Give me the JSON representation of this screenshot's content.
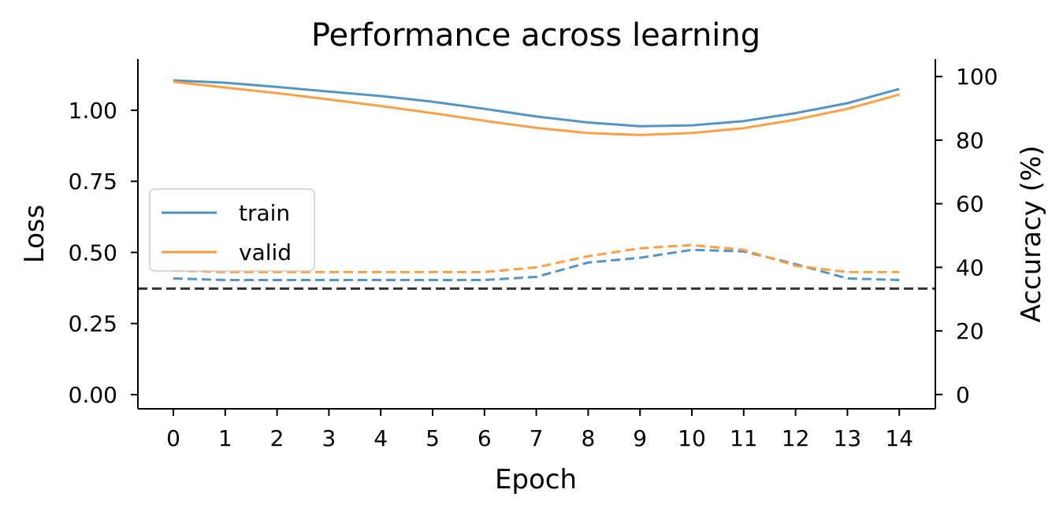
{
  "chart_data": {
    "type": "line",
    "title": "Performance across learning",
    "xlabel": "Epoch",
    "ylabel_left": "Loss",
    "ylabel_right": "Accuracy (%)",
    "x": [
      0,
      1,
      2,
      3,
      4,
      5,
      6,
      7,
      8,
      9,
      10,
      11,
      12,
      13,
      14
    ],
    "x_ticks": [
      "0",
      "1",
      "2",
      "3",
      "4",
      "5",
      "6",
      "7",
      "8",
      "9",
      "10",
      "11",
      "12",
      "13",
      "14"
    ],
    "ylim_left": [
      -0.05,
      1.18
    ],
    "yticks_left": [
      "0.00",
      "0.25",
      "0.50",
      "0.75",
      "1.00"
    ],
    "ylim_right": [
      -4.5,
      105.5
    ],
    "yticks_right": [
      "0",
      "20",
      "40",
      "60",
      "80",
      "100"
    ],
    "series": [
      {
        "name": "train",
        "metric": "loss",
        "axis": "left",
        "style": "solid",
        "color": "#4a90c2",
        "values": [
          1.105,
          1.097,
          1.082,
          1.066,
          1.05,
          1.03,
          1.005,
          0.978,
          0.957,
          0.944,
          0.947,
          0.962,
          0.99,
          1.025,
          1.075
        ]
      },
      {
        "name": "valid",
        "metric": "loss",
        "axis": "left",
        "style": "solid",
        "color": "#ff9a3c",
        "values": [
          1.1,
          1.08,
          1.06,
          1.038,
          1.015,
          0.99,
          0.963,
          0.938,
          0.92,
          0.913,
          0.92,
          0.937,
          0.967,
          1.005,
          1.055
        ]
      },
      {
        "name": "",
        "metric": "accuracy",
        "axis": "right",
        "style": "dashed",
        "color": "#4a90c2",
        "values": [
          36.5,
          36,
          36,
          36,
          36,
          36,
          36,
          37,
          41.5,
          43,
          45.5,
          45,
          41,
          36.5,
          36
        ]
      },
      {
        "name": "",
        "metric": "accuracy",
        "axis": "right",
        "style": "dashed",
        "color": "#ff9a3c",
        "values": [
          39,
          38.5,
          38.5,
          38.5,
          38.5,
          38.5,
          38.5,
          40,
          43.5,
          46,
          47,
          45.5,
          40.5,
          38.5,
          38.5
        ]
      }
    ],
    "chance_line": {
      "axis": "right",
      "value": 33.3,
      "style": "dashed",
      "color": "#333333"
    },
    "legend": {
      "placement": "center-left",
      "entries": [
        "train",
        "valid"
      ]
    },
    "grid": false
  }
}
